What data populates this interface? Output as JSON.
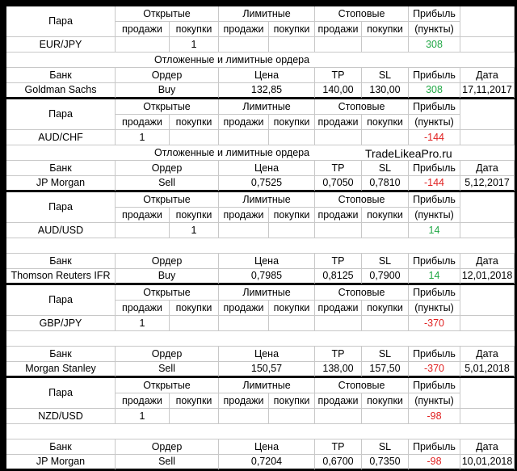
{
  "labels": {
    "pair": "Пара",
    "open": "Открытые",
    "limit": "Лимитные",
    "stop": "Стоповые",
    "profit": "Прибыль",
    "sell": "продажи",
    "buy": "покупки",
    "points": "(пункты)",
    "bank": "Банк",
    "order": "Ордер",
    "price": "Цена",
    "tp": "TP",
    "sl": "SL",
    "date": "Дата",
    "pending_title": "Отложенные и лимитные ордера",
    "site": "TradeLikeaPro.ru"
  },
  "colors": {
    "positive": "#22a846",
    "negative": "#e02020"
  },
  "blocks": [
    {
      "pair": "EUR/JPY",
      "open_sell": "",
      "open_buy": "1",
      "profit": "308",
      "profit_sign": "positive",
      "bank": "Goldman Sachs",
      "order": "Buy",
      "price": "132,85",
      "tp": "140,00",
      "sl": "130,00",
      "profit2": "308",
      "date": "17,11,2017"
    },
    {
      "pair": "AUD/CHF",
      "open_sell": "1",
      "open_buy": "",
      "profit": "-144",
      "profit_sign": "negative",
      "bank": "JP Morgan",
      "order": "Sell",
      "price": "0,7525",
      "tp": "0,7050",
      "sl": "0,7810",
      "profit2": "-144",
      "date": "5,12,2017"
    },
    {
      "pair": "AUD/USD",
      "open_sell": "",
      "open_buy": "1",
      "profit": "14",
      "profit_sign": "positive",
      "bank": "Thomson Reuters IFR",
      "order": "Buy",
      "price": "0,7985",
      "tp": "0,8125",
      "sl": "0,7900",
      "profit2": "14",
      "date": "12,01,2018"
    },
    {
      "pair": "GBP/JPY",
      "open_sell": "1",
      "open_buy": "",
      "profit": "-370",
      "profit_sign": "negative",
      "bank": "Morgan Stanley",
      "order": "Sell",
      "price": "150,57",
      "tp": "138,00",
      "sl": "157,50",
      "profit2": "-370",
      "date": "5,01,2018"
    },
    {
      "pair": "NZD/USD",
      "open_sell": "1",
      "open_buy": "",
      "profit": "-98",
      "profit_sign": "negative",
      "bank": "JP Morgan",
      "order": "Sell",
      "price": "0,7204",
      "tp": "0,6700",
      "sl": "0,7350",
      "profit2": "-98",
      "date": "10,01,2018"
    }
  ]
}
